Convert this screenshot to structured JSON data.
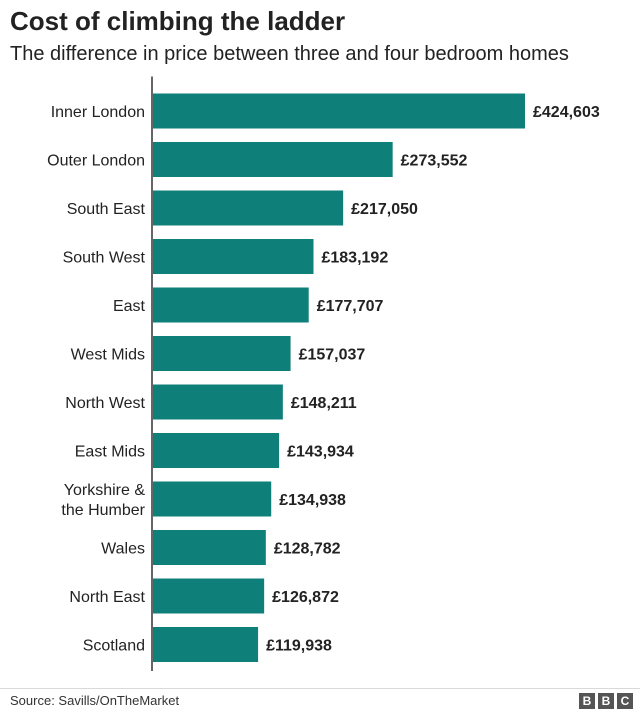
{
  "chart_data": {
    "type": "bar",
    "orientation": "horizontal",
    "title": "Cost of climbing the ladder",
    "subtitle": "The difference in price between three and four bedroom homes",
    "categories": [
      [
        "Inner London"
      ],
      [
        "Outer London"
      ],
      [
        "South East"
      ],
      [
        "South West"
      ],
      [
        "East"
      ],
      [
        "West Mids"
      ],
      [
        "North West"
      ],
      [
        "East Mids"
      ],
      [
        "Yorkshire &",
        "the Humber"
      ],
      [
        "Wales"
      ],
      [
        "North East"
      ],
      [
        "Scotland"
      ]
    ],
    "values": [
      424603,
      273552,
      217050,
      183192,
      177707,
      157037,
      148211,
      143934,
      134938,
      128782,
      126872,
      119938
    ],
    "value_labels": [
      "£424,603",
      "£273,552",
      "£217,050",
      "£183,192",
      "£177,707",
      "£157,037",
      "£148,211",
      "£143,934",
      "£134,938",
      "£128,782",
      "£126,872",
      "£119,938"
    ],
    "bar_color": "#0f7f79",
    "grid": false,
    "legend": "none"
  },
  "footer": {
    "source": "Source: Savills/OnTheMarket",
    "logo_letters": [
      "B",
      "B",
      "C"
    ]
  }
}
